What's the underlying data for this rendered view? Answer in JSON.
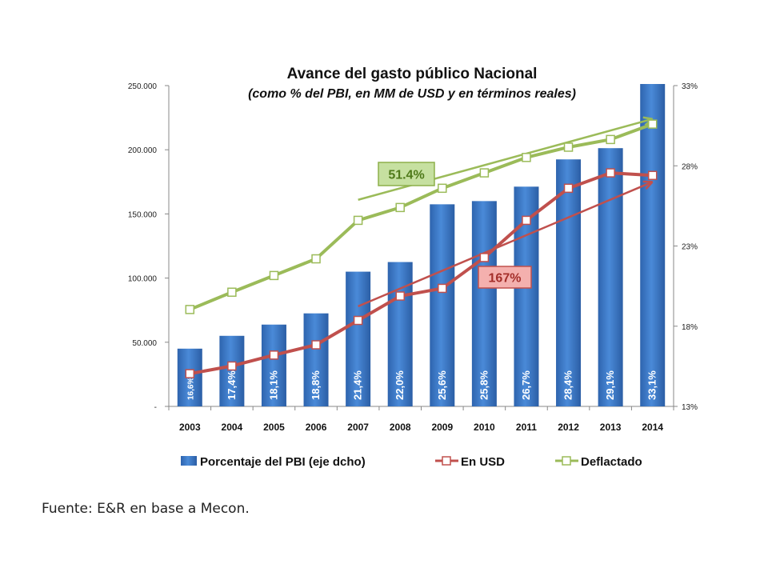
{
  "chart_data": {
    "type": "bar",
    "title": "Avance del gasto público Nacional",
    "subtitle": "(como % del PBI, en MM de USD y en términos reales)",
    "categories": [
      "2003",
      "2004",
      "2005",
      "2006",
      "2007",
      "2008",
      "2009",
      "2010",
      "2011",
      "2012",
      "2013",
      "2014"
    ],
    "left_axis": {
      "ylim": [
        0,
        250000
      ],
      "tick_values": [
        0,
        50000,
        100000,
        150000,
        200000,
        250000
      ],
      "tick_labels": [
        "-",
        "50.000",
        "100.000",
        "150.000",
        "200.000",
        "250.000"
      ]
    },
    "right_axis": {
      "ylim": [
        13,
        33
      ],
      "tick_values": [
        13,
        18,
        23,
        28,
        33
      ],
      "tick_labels": [
        "13%",
        "18%",
        "23%",
        "28%",
        "33%"
      ]
    },
    "series": [
      {
        "name": "Porcentaje del PBI (eje dcho)",
        "type": "bar",
        "axis": "right",
        "color": "#3a78c9",
        "values": [
          16.6,
          17.4,
          18.1,
          18.8,
          21.4,
          22.0,
          25.6,
          25.8,
          26.7,
          28.4,
          29.1,
          33.1
        ],
        "labels": [
          "16,6%",
          "17,4%",
          "18,1%",
          "18,8%",
          "21,4%",
          "22,0%",
          "25,6%",
          "25,8%",
          "26,7%",
          "28,4%",
          "29,1%",
          "33,1%"
        ]
      },
      {
        "name": "En USD",
        "type": "line",
        "axis": "left",
        "color": "#c0504d",
        "values": [
          25500,
          31500,
          40000,
          48000,
          67000,
          86000,
          92000,
          116000,
          145000,
          170000,
          182000,
          180000
        ]
      },
      {
        "name": "Deflactado",
        "type": "line",
        "axis": "left",
        "color": "#9bbb59",
        "values": [
          75500,
          89000,
          102000,
          115000,
          145000,
          155000,
          170000,
          182000,
          194000,
          202000,
          208000,
          220000
        ]
      }
    ],
    "trend_lines": [
      {
        "series": "Deflactado",
        "color": "#9bbb59",
        "from": [
          "2007",
          161000
        ],
        "to": [
          "2014",
          224000
        ],
        "arrow": true
      },
      {
        "series": "En USD",
        "color": "#c0504d",
        "from": [
          "2007",
          78000
        ],
        "to": [
          "2014",
          175000
        ],
        "arrow": true
      }
    ],
    "annotations": [
      {
        "text": "51.4%",
        "series": "Deflactado",
        "fill": "#c6e0a0",
        "border": "#8db04a",
        "color": "#4f7a1a"
      },
      {
        "text": "167%",
        "series": "En USD",
        "fill": "#f4b0ae",
        "border": "#c0504d",
        "color": "#a42f2b"
      }
    ],
    "legend": [
      "Porcentaje del PBI (eje dcho)",
      "En USD",
      "Deflactado"
    ],
    "legend_position": "bottom",
    "grid": false
  },
  "source": "Fuente: E&R en base a Mecon."
}
